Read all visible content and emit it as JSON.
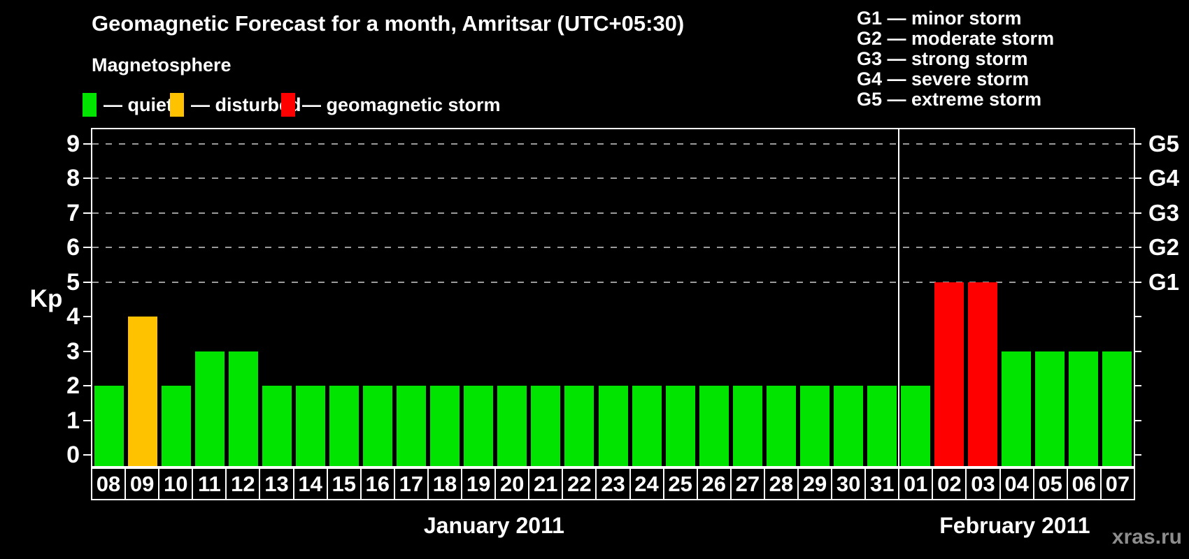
{
  "page": {
    "background": "#000000",
    "watermark": "xras.ru"
  },
  "header": {
    "title": "Geomagnetic Forecast for a month, Amritsar (UTC+05:30)",
    "subtitle": "Magnetosphere"
  },
  "legend": {
    "items": [
      {
        "key": "quiet",
        "label": "— quiet"
      },
      {
        "key": "disturbed",
        "label": "— disturbed"
      },
      {
        "key": "storm",
        "label": "— geomagnetic storm"
      }
    ]
  },
  "g_scale_legend": {
    "items": [
      "G1 — minor storm",
      "G2 — moderate storm",
      "G3 — strong storm",
      "G4 — severe storm",
      "G5 — extreme storm"
    ]
  },
  "colors": {
    "quiet": "#00e400",
    "disturbed": "#ffc200",
    "storm": "#ff0000",
    "axis": "#ffffff",
    "grid": "#9a9a9a",
    "watermark": "#8d8d8d"
  },
  "chart_data": {
    "type": "bar",
    "title": "Geomagnetic Forecast for a month, Amritsar (UTC+05:30)",
    "xlabel": "",
    "ylabel": "Kp",
    "ylim": [
      0,
      9
    ],
    "yticks": [
      0,
      1,
      2,
      3,
      4,
      5,
      6,
      7,
      8,
      9
    ],
    "gridlines_at": [
      5,
      6,
      7,
      8,
      9
    ],
    "grid_style": "dashed horizontal lines at storm levels only",
    "legend_position": "top-left",
    "right_axis_labels": [
      {
        "kp": 5,
        "label": "G1"
      },
      {
        "kp": 6,
        "label": "G2"
      },
      {
        "kp": 7,
        "label": "G3"
      },
      {
        "kp": 8,
        "label": "G4"
      },
      {
        "kp": 9,
        "label": "G5"
      }
    ],
    "months": [
      {
        "label": "January 2011",
        "days": 24
      },
      {
        "label": "February 2011",
        "days": 7
      }
    ],
    "categories": [
      "08",
      "09",
      "10",
      "11",
      "12",
      "13",
      "14",
      "15",
      "16",
      "17",
      "18",
      "19",
      "20",
      "21",
      "22",
      "23",
      "24",
      "25",
      "26",
      "27",
      "28",
      "29",
      "30",
      "31",
      "01",
      "02",
      "03",
      "04",
      "05",
      "06",
      "07"
    ],
    "values": [
      2,
      4,
      2,
      3,
      3,
      2,
      2,
      2,
      2,
      2,
      2,
      2,
      2,
      2,
      2,
      2,
      2,
      2,
      2,
      2,
      2,
      2,
      2,
      2,
      2,
      5,
      5,
      3,
      3,
      3,
      3
    ],
    "states": [
      "quiet",
      "disturbed",
      "quiet",
      "quiet",
      "quiet",
      "quiet",
      "quiet",
      "quiet",
      "quiet",
      "quiet",
      "quiet",
      "quiet",
      "quiet",
      "quiet",
      "quiet",
      "quiet",
      "quiet",
      "quiet",
      "quiet",
      "quiet",
      "quiet",
      "quiet",
      "quiet",
      "quiet",
      "quiet",
      "storm",
      "storm",
      "quiet",
      "quiet",
      "quiet",
      "quiet"
    ]
  }
}
